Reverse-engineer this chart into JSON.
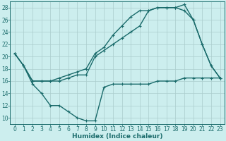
{
  "background_color": "#cceeee",
  "grid_color": "#aacccc",
  "line_color": "#1a6b6b",
  "line_width": 1.0,
  "marker": "+",
  "marker_size": 3,
  "marker_edge_width": 0.8,
  "xlabel": "Humidex (Indice chaleur)",
  "xlabel_fontsize": 6.5,
  "tick_fontsize": 5.5,
  "xlim": [
    -0.5,
    23.5
  ],
  "ylim": [
    9,
    29
  ],
  "yticks": [
    10,
    12,
    14,
    16,
    18,
    20,
    22,
    24,
    26,
    28
  ],
  "xticks": [
    0,
    1,
    2,
    3,
    4,
    5,
    6,
    7,
    8,
    9,
    10,
    11,
    12,
    13,
    14,
    15,
    16,
    17,
    18,
    19,
    20,
    21,
    22,
    23
  ],
  "series": [
    {
      "x": [
        0,
        1,
        2,
        3,
        4,
        5,
        6,
        7,
        8,
        9,
        10,
        11,
        12,
        13,
        14,
        15,
        16,
        17,
        18,
        19,
        20,
        21,
        22,
        23
      ],
      "y": [
        20.5,
        18.5,
        15.5,
        14,
        12,
        12,
        11,
        10,
        9.5,
        9.5,
        15,
        15.5,
        15.5,
        15.5,
        15.5,
        15.5,
        16,
        16,
        16,
        16.5,
        16.5,
        16.5,
        16.5,
        16.5
      ]
    },
    {
      "x": [
        0,
        1,
        2,
        3,
        4,
        5,
        6,
        7,
        8,
        9,
        10,
        11,
        12,
        13,
        14,
        15,
        16,
        17,
        18,
        19,
        20,
        21,
        22,
        23
      ],
      "y": [
        20.5,
        18.5,
        16,
        16,
        16,
        16.5,
        17,
        17.5,
        18,
        20.5,
        21.5,
        23.5,
        25,
        26.5,
        27.5,
        27.5,
        28,
        28,
        28,
        28.5,
        26,
        22,
        18.5,
        16.5
      ]
    },
    {
      "x": [
        0,
        1,
        2,
        3,
        4,
        5,
        6,
        7,
        8,
        9,
        10,
        11,
        12,
        13,
        14,
        15,
        16,
        17,
        18,
        19,
        20,
        21,
        22,
        23
      ],
      "y": [
        20.5,
        18.5,
        16,
        16,
        16,
        16,
        16.5,
        17,
        17,
        20,
        21,
        22,
        23,
        24,
        25,
        27.5,
        28,
        28,
        28,
        27.5,
        26,
        22,
        18.5,
        16.5
      ]
    }
  ]
}
